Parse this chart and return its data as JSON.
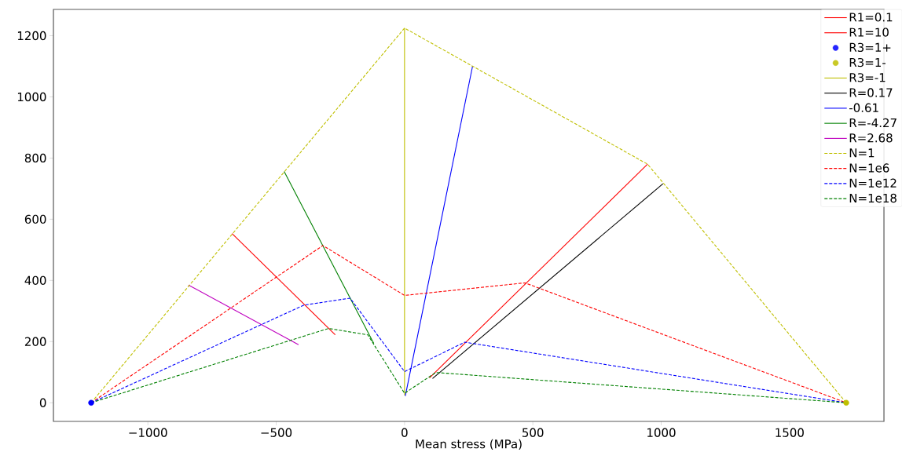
{
  "chart_data": {
    "type": "line",
    "xlabel": "Mean stress (MPa)",
    "xlim": [
      -1368,
      1868
    ],
    "ylim": [
      -61,
      1286
    ],
    "xticks": [
      {
        "value": -1000,
        "label": "−1000"
      },
      {
        "value": -500,
        "label": "−500"
      },
      0,
      500,
      1000,
      1500
    ],
    "yticks": [
      0,
      200,
      400,
      600,
      800,
      1000,
      1200
    ],
    "legend": "top right",
    "grid": false,
    "series": [
      {
        "name": "R1=0.1",
        "color": "#ff0000",
        "line_style": "solid",
        "x": [
          97,
          947
        ],
        "values": [
          81,
          780
        ]
      },
      {
        "name": "R1=10",
        "color": "#ff0000",
        "line_style": "solid",
        "x": [
          -672,
          -270
        ],
        "values": [
          553,
          222
        ]
      },
      {
        "name": "R3=1+",
        "color": "#0000ff",
        "type": "scatter",
        "marker": "circle",
        "x": [
          -1221
        ],
        "values": [
          0
        ]
      },
      {
        "name": "R3=1-",
        "color": "#bfbf00",
        "type": "scatter",
        "marker": "circle",
        "x": [
          1721
        ],
        "values": [
          0
        ]
      },
      {
        "name": "R3=-1",
        "color": "#bfbf00",
        "line_style": "solid",
        "x": [
          0,
          0
        ],
        "values": [
          1225,
          24
        ]
      },
      {
        "name": "R=0.17",
        "color": "#000000",
        "line_style": "solid",
        "x": [
          109,
          1007
        ],
        "values": [
          79,
          716
        ]
      },
      {
        "name": "-0.61",
        "color": "#0000ff",
        "line_style": "solid",
        "x": [
          3,
          265
        ],
        "values": [
          22,
          1100
        ]
      },
      {
        "name": "R=-4.27",
        "color": "#008000",
        "line_style": "solid",
        "x": [
          -469,
          -120
        ],
        "values": [
          756,
          194
        ]
      },
      {
        "name": "R=2.68",
        "color": "#bf00bf",
        "line_style": "solid",
        "x": [
          -842,
          -413
        ],
        "values": [
          385,
          190
        ]
      },
      {
        "name": "N=1",
        "color": "#bfbf00",
        "line_style": "dashed",
        "x": [
          -1221,
          0,
          947,
          1721
        ],
        "values": [
          0,
          1225,
          780,
          0
        ]
      },
      {
        "name": "N=1e6",
        "color": "#ff0000",
        "line_style": "dashed",
        "x": [
          -1221,
          -318,
          0,
          469,
          1721
        ],
        "values": [
          0,
          514,
          351,
          392,
          0
        ]
      },
      {
        "name": "N=1e12",
        "color": "#0000ff",
        "line_style": "dashed",
        "x": [
          -1221,
          -393,
          -212,
          0,
          235,
          1721
        ],
        "values": [
          0,
          319,
          342,
          102,
          198,
          0
        ]
      },
      {
        "name": "N=1e18",
        "color": "#008000",
        "line_style": "dashed",
        "x": [
          -1221,
          -296,
          -143,
          0,
          122,
          1721
        ],
        "values": [
          0,
          243,
          222,
          31,
          99,
          0
        ]
      }
    ]
  }
}
